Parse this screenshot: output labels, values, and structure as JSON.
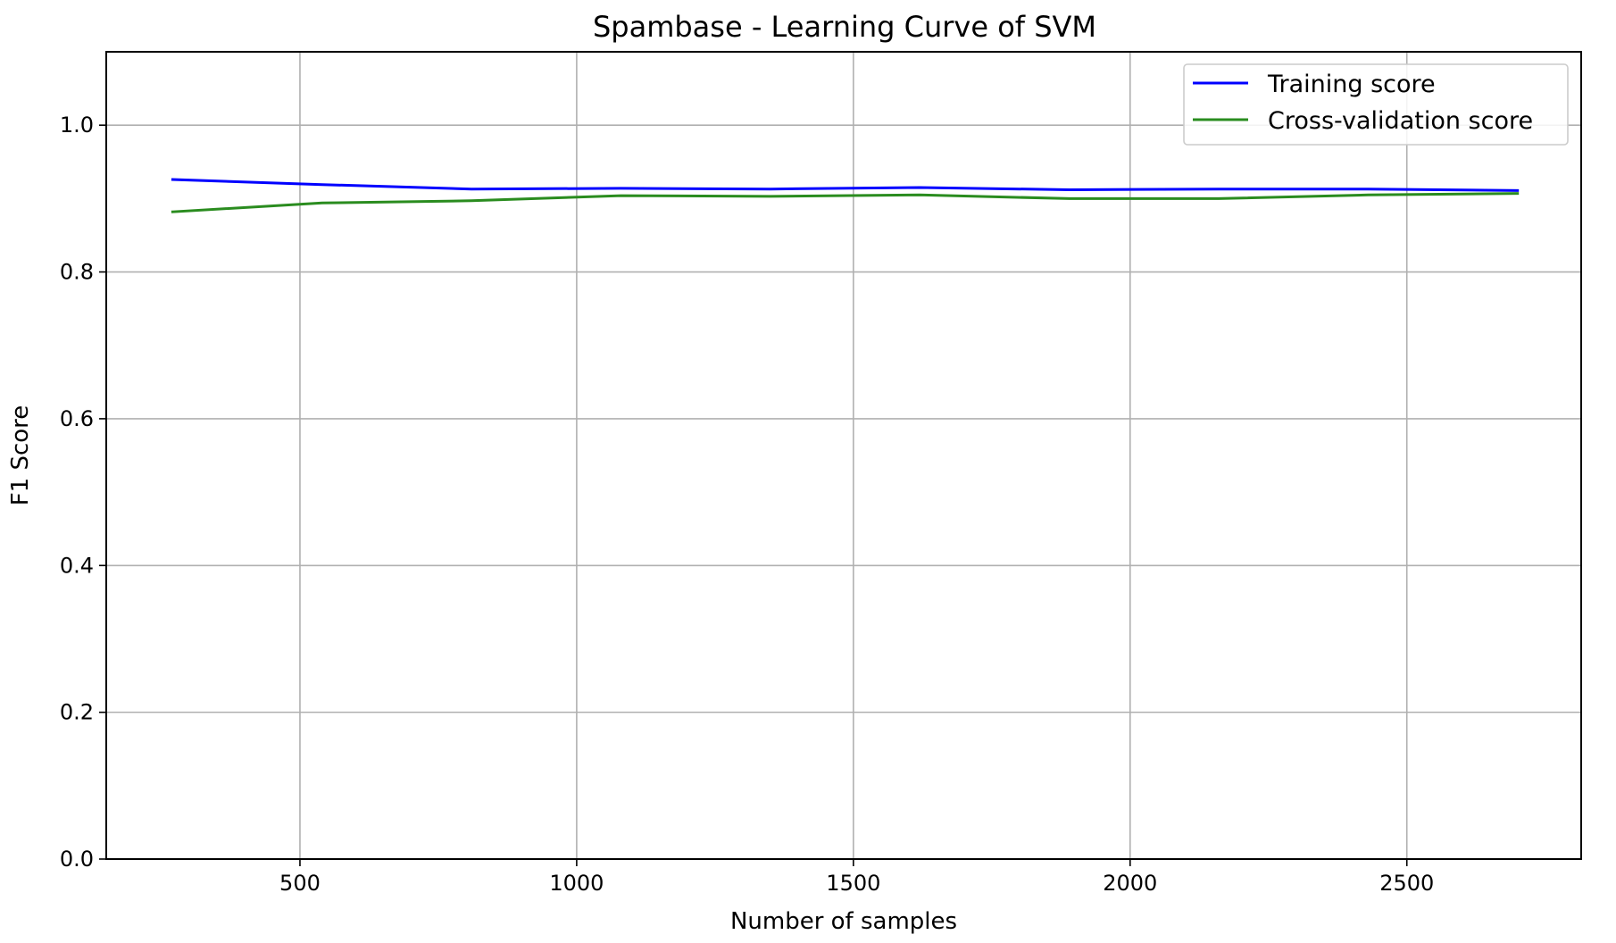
{
  "chart_data": {
    "type": "line",
    "title": "Spambase - Learning Curve of SVM",
    "xlabel": "Number of samples",
    "ylabel": "F1 Score",
    "xlim": [
      150,
      2815
    ],
    "ylim": [
      0.0,
      1.1
    ],
    "xticks": [
      500,
      1000,
      1500,
      2000,
      2500
    ],
    "xtick_labels": [
      "500",
      "1000",
      "1500",
      "2000",
      "2500"
    ],
    "yticks": [
      0.0,
      0.2,
      0.4,
      0.6,
      0.8,
      1.0
    ],
    "ytick_labels": [
      "0.0",
      "0.2",
      "0.4",
      "0.6",
      "0.8",
      "1.0"
    ],
    "grid": true,
    "legend_position": "top-right",
    "x": [
      270,
      540,
      810,
      1080,
      1350,
      1620,
      1890,
      2160,
      2430,
      2700
    ],
    "series": [
      {
        "name": "Training score",
        "color": "#0000ff",
        "values": [
          0.926,
          0.919,
          0.913,
          0.914,
          0.913,
          0.915,
          0.912,
          0.913,
          0.913,
          0.911
        ]
      },
      {
        "name": "Cross-validation score",
        "color": "#2a8c1f",
        "values": [
          0.882,
          0.894,
          0.897,
          0.904,
          0.903,
          0.905,
          0.9,
          0.9,
          0.905,
          0.907
        ]
      }
    ]
  }
}
